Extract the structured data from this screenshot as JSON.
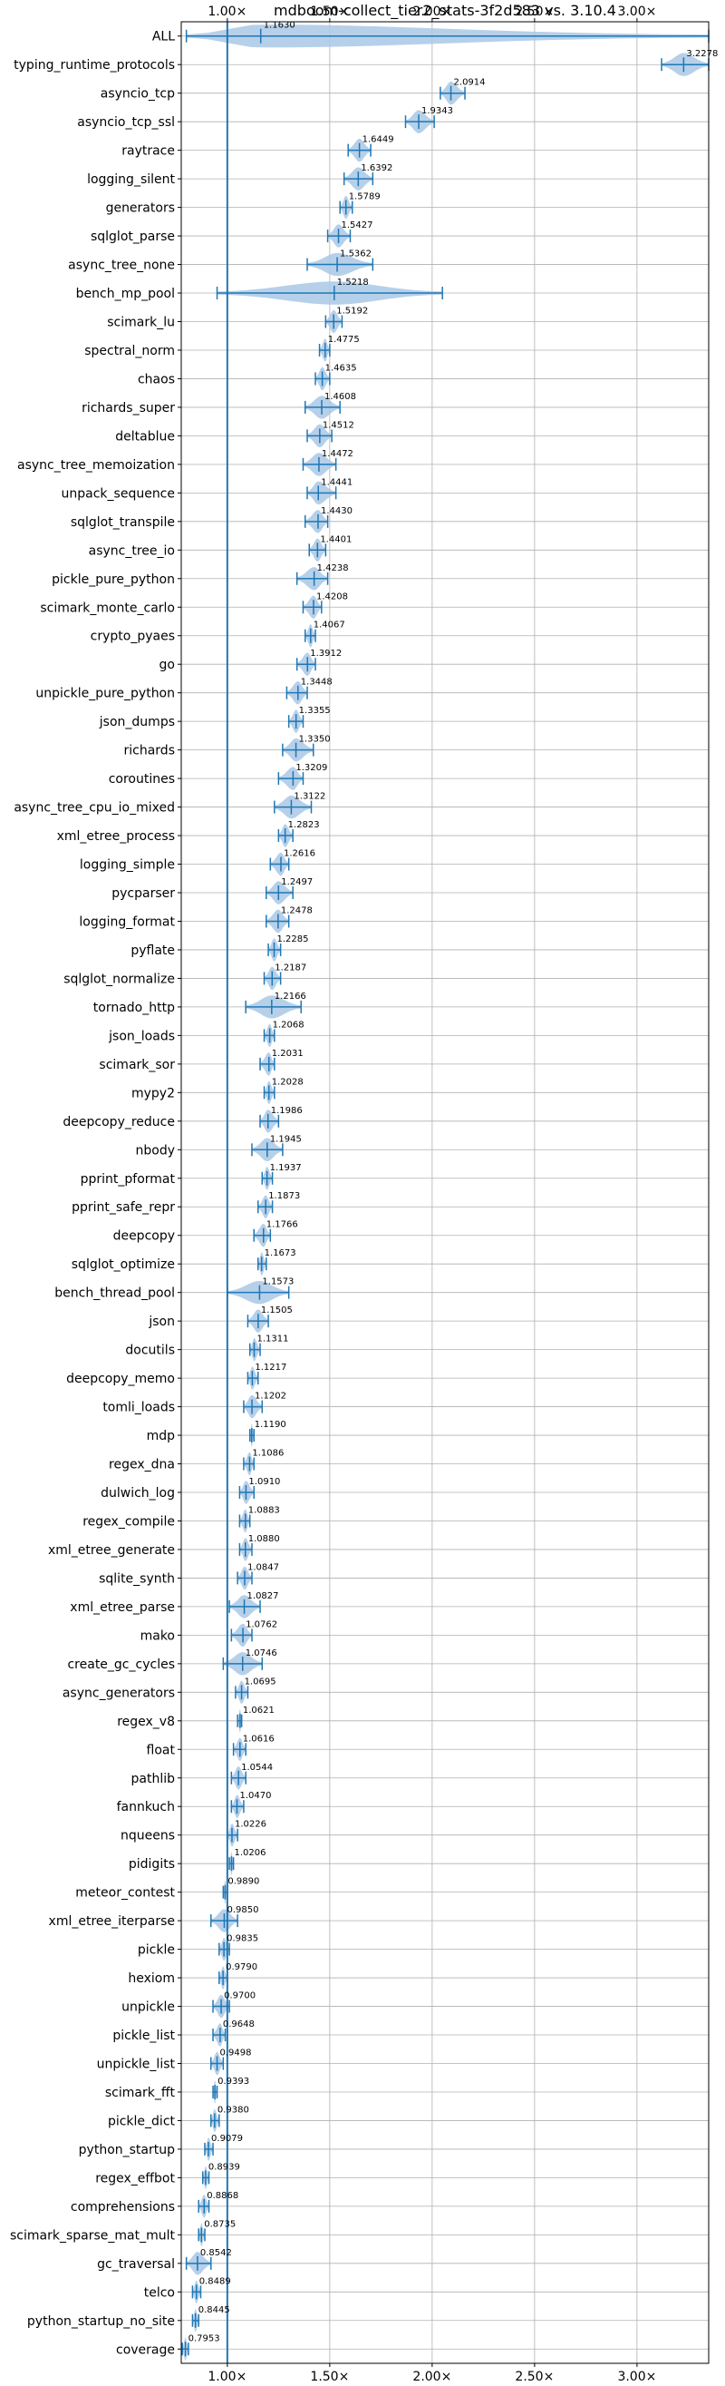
{
  "chart_data": {
    "type": "violin",
    "title": "mdboom-collect_tier2_stats-3f2d583 vs. 3.10.4",
    "xlim": [
      0.775,
      3.35
    ],
    "x_ticks": [
      1.0,
      1.5,
      2.0,
      2.5,
      3.0
    ],
    "x_tick_labels": [
      "1.00×",
      "1.50×",
      "2.00×",
      "2.50×",
      "3.00×"
    ],
    "reference_line": 1.0,
    "grid": true,
    "colors": {
      "accent": "#1f77b4",
      "violin_fill": "#a9c8e6",
      "grid": "#b0b0b0"
    },
    "categories": [
      {
        "name": "ALL",
        "value": 1.163,
        "min": 0.8,
        "max": 3.35
      },
      {
        "name": "typing_runtime_protocols",
        "value": 3.2278,
        "min": 3.12,
        "max": 3.35
      },
      {
        "name": "asyncio_tcp",
        "value": 2.0914,
        "min": 2.04,
        "max": 2.16
      },
      {
        "name": "asyncio_tcp_ssl",
        "value": 1.9343,
        "min": 1.87,
        "max": 2.01
      },
      {
        "name": "raytrace",
        "value": 1.6449,
        "min": 1.59,
        "max": 1.7
      },
      {
        "name": "logging_silent",
        "value": 1.6392,
        "min": 1.57,
        "max": 1.71
      },
      {
        "name": "generators",
        "value": 1.5789,
        "min": 1.55,
        "max": 1.61
      },
      {
        "name": "sqlglot_parse",
        "value": 1.5427,
        "min": 1.49,
        "max": 1.6
      },
      {
        "name": "async_tree_none",
        "value": 1.5362,
        "min": 1.39,
        "max": 1.71
      },
      {
        "name": "bench_mp_pool",
        "value": 1.5218,
        "min": 0.95,
        "max": 2.05
      },
      {
        "name": "scimark_lu",
        "value": 1.5192,
        "min": 1.48,
        "max": 1.56
      },
      {
        "name": "spectral_norm",
        "value": 1.4775,
        "min": 1.45,
        "max": 1.5
      },
      {
        "name": "chaos",
        "value": 1.4635,
        "min": 1.43,
        "max": 1.5
      },
      {
        "name": "richards_super",
        "value": 1.4608,
        "min": 1.38,
        "max": 1.55
      },
      {
        "name": "deltablue",
        "value": 1.4512,
        "min": 1.39,
        "max": 1.51
      },
      {
        "name": "async_tree_memoization",
        "value": 1.4472,
        "min": 1.37,
        "max": 1.53
      },
      {
        "name": "unpack_sequence",
        "value": 1.4441,
        "min": 1.39,
        "max": 1.53
      },
      {
        "name": "sqlglot_transpile",
        "value": 1.443,
        "min": 1.38,
        "max": 1.49
      },
      {
        "name": "async_tree_io",
        "value": 1.4401,
        "min": 1.4,
        "max": 1.48
      },
      {
        "name": "pickle_pure_python",
        "value": 1.4238,
        "min": 1.34,
        "max": 1.49
      },
      {
        "name": "scimark_monte_carlo",
        "value": 1.4208,
        "min": 1.37,
        "max": 1.46
      },
      {
        "name": "crypto_pyaes",
        "value": 1.4067,
        "min": 1.38,
        "max": 1.43
      },
      {
        "name": "go",
        "value": 1.3912,
        "min": 1.34,
        "max": 1.43
      },
      {
        "name": "unpickle_pure_python",
        "value": 1.3448,
        "min": 1.29,
        "max": 1.39
      },
      {
        "name": "json_dumps",
        "value": 1.3355,
        "min": 1.3,
        "max": 1.37
      },
      {
        "name": "richards",
        "value": 1.335,
        "min": 1.27,
        "max": 1.42
      },
      {
        "name": "coroutines",
        "value": 1.3209,
        "min": 1.25,
        "max": 1.37
      },
      {
        "name": "async_tree_cpu_io_mixed",
        "value": 1.3122,
        "min": 1.23,
        "max": 1.41
      },
      {
        "name": "xml_etree_process",
        "value": 1.2823,
        "min": 1.25,
        "max": 1.32
      },
      {
        "name": "logging_simple",
        "value": 1.2616,
        "min": 1.21,
        "max": 1.3
      },
      {
        "name": "pycparser",
        "value": 1.2497,
        "min": 1.19,
        "max": 1.32
      },
      {
        "name": "logging_format",
        "value": 1.2478,
        "min": 1.19,
        "max": 1.3
      },
      {
        "name": "pyflate",
        "value": 1.2285,
        "min": 1.2,
        "max": 1.26
      },
      {
        "name": "sqlglot_normalize",
        "value": 1.2187,
        "min": 1.18,
        "max": 1.26
      },
      {
        "name": "tornado_http",
        "value": 1.2166,
        "min": 1.09,
        "max": 1.36
      },
      {
        "name": "json_loads",
        "value": 1.2068,
        "min": 1.18,
        "max": 1.23
      },
      {
        "name": "scimark_sor",
        "value": 1.2031,
        "min": 1.16,
        "max": 1.23
      },
      {
        "name": "mypy2",
        "value": 1.2028,
        "min": 1.18,
        "max": 1.23
      },
      {
        "name": "deepcopy_reduce",
        "value": 1.1986,
        "min": 1.16,
        "max": 1.25
      },
      {
        "name": "nbody",
        "value": 1.1945,
        "min": 1.12,
        "max": 1.27
      },
      {
        "name": "pprint_pformat",
        "value": 1.1937,
        "min": 1.17,
        "max": 1.22
      },
      {
        "name": "pprint_safe_repr",
        "value": 1.1873,
        "min": 1.15,
        "max": 1.22
      },
      {
        "name": "deepcopy",
        "value": 1.1766,
        "min": 1.13,
        "max": 1.21
      },
      {
        "name": "sqlglot_optimize",
        "value": 1.1673,
        "min": 1.15,
        "max": 1.19
      },
      {
        "name": "bench_thread_pool",
        "value": 1.1573,
        "min": 1.0,
        "max": 1.3
      },
      {
        "name": "json",
        "value": 1.1505,
        "min": 1.1,
        "max": 1.2
      },
      {
        "name": "docutils",
        "value": 1.1311,
        "min": 1.11,
        "max": 1.16
      },
      {
        "name": "deepcopy_memo",
        "value": 1.1217,
        "min": 1.1,
        "max": 1.15
      },
      {
        "name": "tomli_loads",
        "value": 1.1202,
        "min": 1.08,
        "max": 1.17
      },
      {
        "name": "mdp",
        "value": 1.119,
        "min": 1.11,
        "max": 1.13
      },
      {
        "name": "regex_dna",
        "value": 1.1086,
        "min": 1.08,
        "max": 1.13
      },
      {
        "name": "dulwich_log",
        "value": 1.091,
        "min": 1.06,
        "max": 1.13
      },
      {
        "name": "regex_compile",
        "value": 1.0883,
        "min": 1.06,
        "max": 1.11
      },
      {
        "name": "xml_etree_generate",
        "value": 1.088,
        "min": 1.06,
        "max": 1.12
      },
      {
        "name": "sqlite_synth",
        "value": 1.0847,
        "min": 1.05,
        "max": 1.12
      },
      {
        "name": "xml_etree_parse",
        "value": 1.0827,
        "min": 1.01,
        "max": 1.16
      },
      {
        "name": "mako",
        "value": 1.0762,
        "min": 1.02,
        "max": 1.12
      },
      {
        "name": "create_gc_cycles",
        "value": 1.0746,
        "min": 0.98,
        "max": 1.17
      },
      {
        "name": "async_generators",
        "value": 1.0695,
        "min": 1.04,
        "max": 1.1
      },
      {
        "name": "regex_v8",
        "value": 1.0621,
        "min": 1.05,
        "max": 1.07
      },
      {
        "name": "float",
        "value": 1.0616,
        "min": 1.03,
        "max": 1.09
      },
      {
        "name": "pathlib",
        "value": 1.0544,
        "min": 1.02,
        "max": 1.09
      },
      {
        "name": "fannkuch",
        "value": 1.047,
        "min": 1.02,
        "max": 1.08
      },
      {
        "name": "nqueens",
        "value": 1.0226,
        "min": 1.0,
        "max": 1.05
      },
      {
        "name": "pidigits",
        "value": 1.0206,
        "min": 1.01,
        "max": 1.03
      },
      {
        "name": "meteor_contest",
        "value": 0.989,
        "min": 0.98,
        "max": 1.0
      },
      {
        "name": "xml_etree_iterparse",
        "value": 0.985,
        "min": 0.92,
        "max": 1.05
      },
      {
        "name": "pickle",
        "value": 0.9835,
        "min": 0.96,
        "max": 1.01
      },
      {
        "name": "hexiom",
        "value": 0.979,
        "min": 0.96,
        "max": 1.0
      },
      {
        "name": "unpickle",
        "value": 0.97,
        "min": 0.93,
        "max": 1.01
      },
      {
        "name": "pickle_list",
        "value": 0.9648,
        "min": 0.93,
        "max": 0.99
      },
      {
        "name": "unpickle_list",
        "value": 0.9498,
        "min": 0.92,
        "max": 0.98
      },
      {
        "name": "scimark_fft",
        "value": 0.9393,
        "min": 0.93,
        "max": 0.95
      },
      {
        "name": "pickle_dict",
        "value": 0.938,
        "min": 0.92,
        "max": 0.96
      },
      {
        "name": "python_startup",
        "value": 0.9079,
        "min": 0.89,
        "max": 0.93
      },
      {
        "name": "regex_effbot",
        "value": 0.8939,
        "min": 0.88,
        "max": 0.91
      },
      {
        "name": "comprehensions",
        "value": 0.8868,
        "min": 0.86,
        "max": 0.91
      },
      {
        "name": "scimark_sparse_mat_mult",
        "value": 0.8735,
        "min": 0.86,
        "max": 0.89
      },
      {
        "name": "gc_traversal",
        "value": 0.8542,
        "min": 0.8,
        "max": 0.92
      },
      {
        "name": "telco",
        "value": 0.8489,
        "min": 0.83,
        "max": 0.87
      },
      {
        "name": "python_startup_no_site",
        "value": 0.8445,
        "min": 0.83,
        "max": 0.86
      },
      {
        "name": "coverage",
        "value": 0.7953,
        "min": 0.78,
        "max": 0.81
      }
    ]
  }
}
